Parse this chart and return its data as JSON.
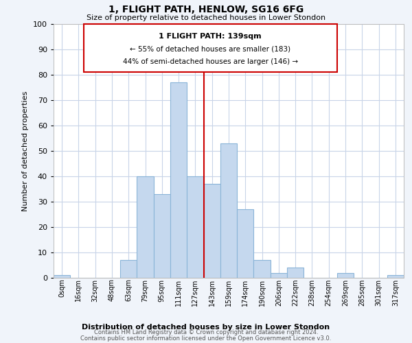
{
  "title": "1, FLIGHT PATH, HENLOW, SG16 6FG",
  "subtitle": "Size of property relative to detached houses in Lower Stondon",
  "xlabel": "Distribution of detached houses by size in Lower Stondon",
  "ylabel": "Number of detached properties",
  "bar_labels": [
    "0sqm",
    "16sqm",
    "32sqm",
    "48sqm",
    "63sqm",
    "79sqm",
    "95sqm",
    "111sqm",
    "127sqm",
    "143sqm",
    "159sqm",
    "174sqm",
    "190sqm",
    "206sqm",
    "222sqm",
    "238sqm",
    "254sqm",
    "269sqm",
    "285sqm",
    "301sqm",
    "317sqm"
  ],
  "bar_heights": [
    1,
    0,
    0,
    0,
    7,
    40,
    33,
    77,
    40,
    37,
    53,
    27,
    7,
    2,
    4,
    0,
    0,
    2,
    0,
    0,
    1
  ],
  "bar_color": "#c5d8ee",
  "bar_edge_color": "#8ab4d8",
  "reference_line_label": "1 FLIGHT PATH: 139sqm",
  "annotation_line1": "← 55% of detached houses are smaller (183)",
  "annotation_line2": "44% of semi-detached houses are larger (146) →",
  "ylim": [
    0,
    100
  ],
  "yticks": [
    0,
    10,
    20,
    30,
    40,
    50,
    60,
    70,
    80,
    90,
    100
  ],
  "footer_line1": "Contains HM Land Registry data © Crown copyright and database right 2024.",
  "footer_line2": "Contains public sector information licensed under the Open Government Licence v3.0.",
  "bg_color": "#f0f4fa",
  "plot_bg_color": "#ffffff",
  "grid_color": "#c8d4e8",
  "ref_line_color": "#cc0000",
  "box_edge_color": "#cc0000"
}
